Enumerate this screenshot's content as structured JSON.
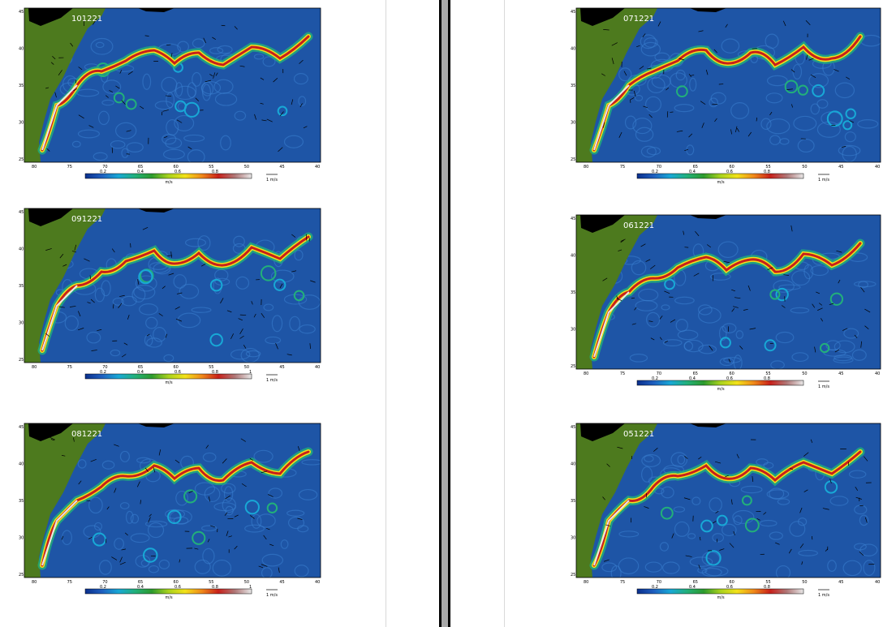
{
  "colors": {
    "ocean": "#1e55a6",
    "land": "#4d7a1e",
    "north_land": "#000000",
    "page": "#ffffff",
    "gutter": "#a9a9a9"
  },
  "colorbar_stops": [
    "#0a2f8c",
    "#1f5fbf",
    "#18a8d6",
    "#22b07a",
    "#2c9a2e",
    "#a8d21e",
    "#f2e21a",
    "#f08a1a",
    "#c8201a",
    "#b07878",
    "#e8e8e8"
  ],
  "units": {
    "speed": "m/s",
    "vector_scale": "1 m/s"
  },
  "panels": [
    {
      "id": "p1",
      "date": "101221",
      "lat_labels": [
        "45",
        "40",
        "35",
        "30",
        "25"
      ],
      "lon_labels": [
        "80",
        "75",
        "70",
        "65",
        "60",
        "55",
        "50",
        "45",
        "40"
      ],
      "cbar_labels": [
        "0.2",
        "0.4",
        "0.6",
        "0.8"
      ]
    },
    {
      "id": "p2",
      "date": "091221",
      "lat_labels": [
        "45",
        "40",
        "35",
        "30",
        "25"
      ],
      "lon_labels": [
        "80",
        "75",
        "70",
        "65",
        "60",
        "55",
        "50",
        "45",
        "40"
      ],
      "cbar_labels": [
        "0.2",
        "0.4",
        "0.6",
        "0.8",
        "1"
      ]
    },
    {
      "id": "p3",
      "date": "081221",
      "lat_labels": [
        "45",
        "40",
        "35",
        "30",
        "25"
      ],
      "lon_labels": [
        "80",
        "75",
        "70",
        "65",
        "60",
        "55",
        "50",
        "45",
        "40"
      ],
      "cbar_labels": [
        "0.2",
        "0.4",
        "0.6",
        "0.8",
        "1"
      ]
    },
    {
      "id": "p4",
      "date": "071221",
      "lat_labels": [
        "45",
        "40",
        "35",
        "30",
        "25"
      ],
      "lon_labels": [
        "80",
        "75",
        "70",
        "65",
        "60",
        "55",
        "50",
        "45",
        "40"
      ],
      "cbar_labels": [
        "0.2",
        "0.4",
        "0.6",
        "0.8"
      ]
    },
    {
      "id": "p5",
      "date": "061221",
      "lat_labels": [
        "45",
        "40",
        "35",
        "30",
        "25"
      ],
      "lon_labels": [
        "80",
        "75",
        "70",
        "65",
        "60",
        "55",
        "50",
        "45",
        "40"
      ],
      "cbar_labels": [
        "0.2",
        "0.4",
        "0.6",
        "0.8"
      ]
    },
    {
      "id": "p6",
      "date": "051221",
      "lat_labels": [
        "45",
        "40",
        "35",
        "30",
        "25"
      ],
      "lon_labels": [
        "80",
        "75",
        "70",
        "65",
        "60",
        "55",
        "50",
        "45",
        "40"
      ],
      "cbar_labels": [
        "0.2",
        "0.4",
        "0.6",
        "0.8"
      ]
    }
  ]
}
